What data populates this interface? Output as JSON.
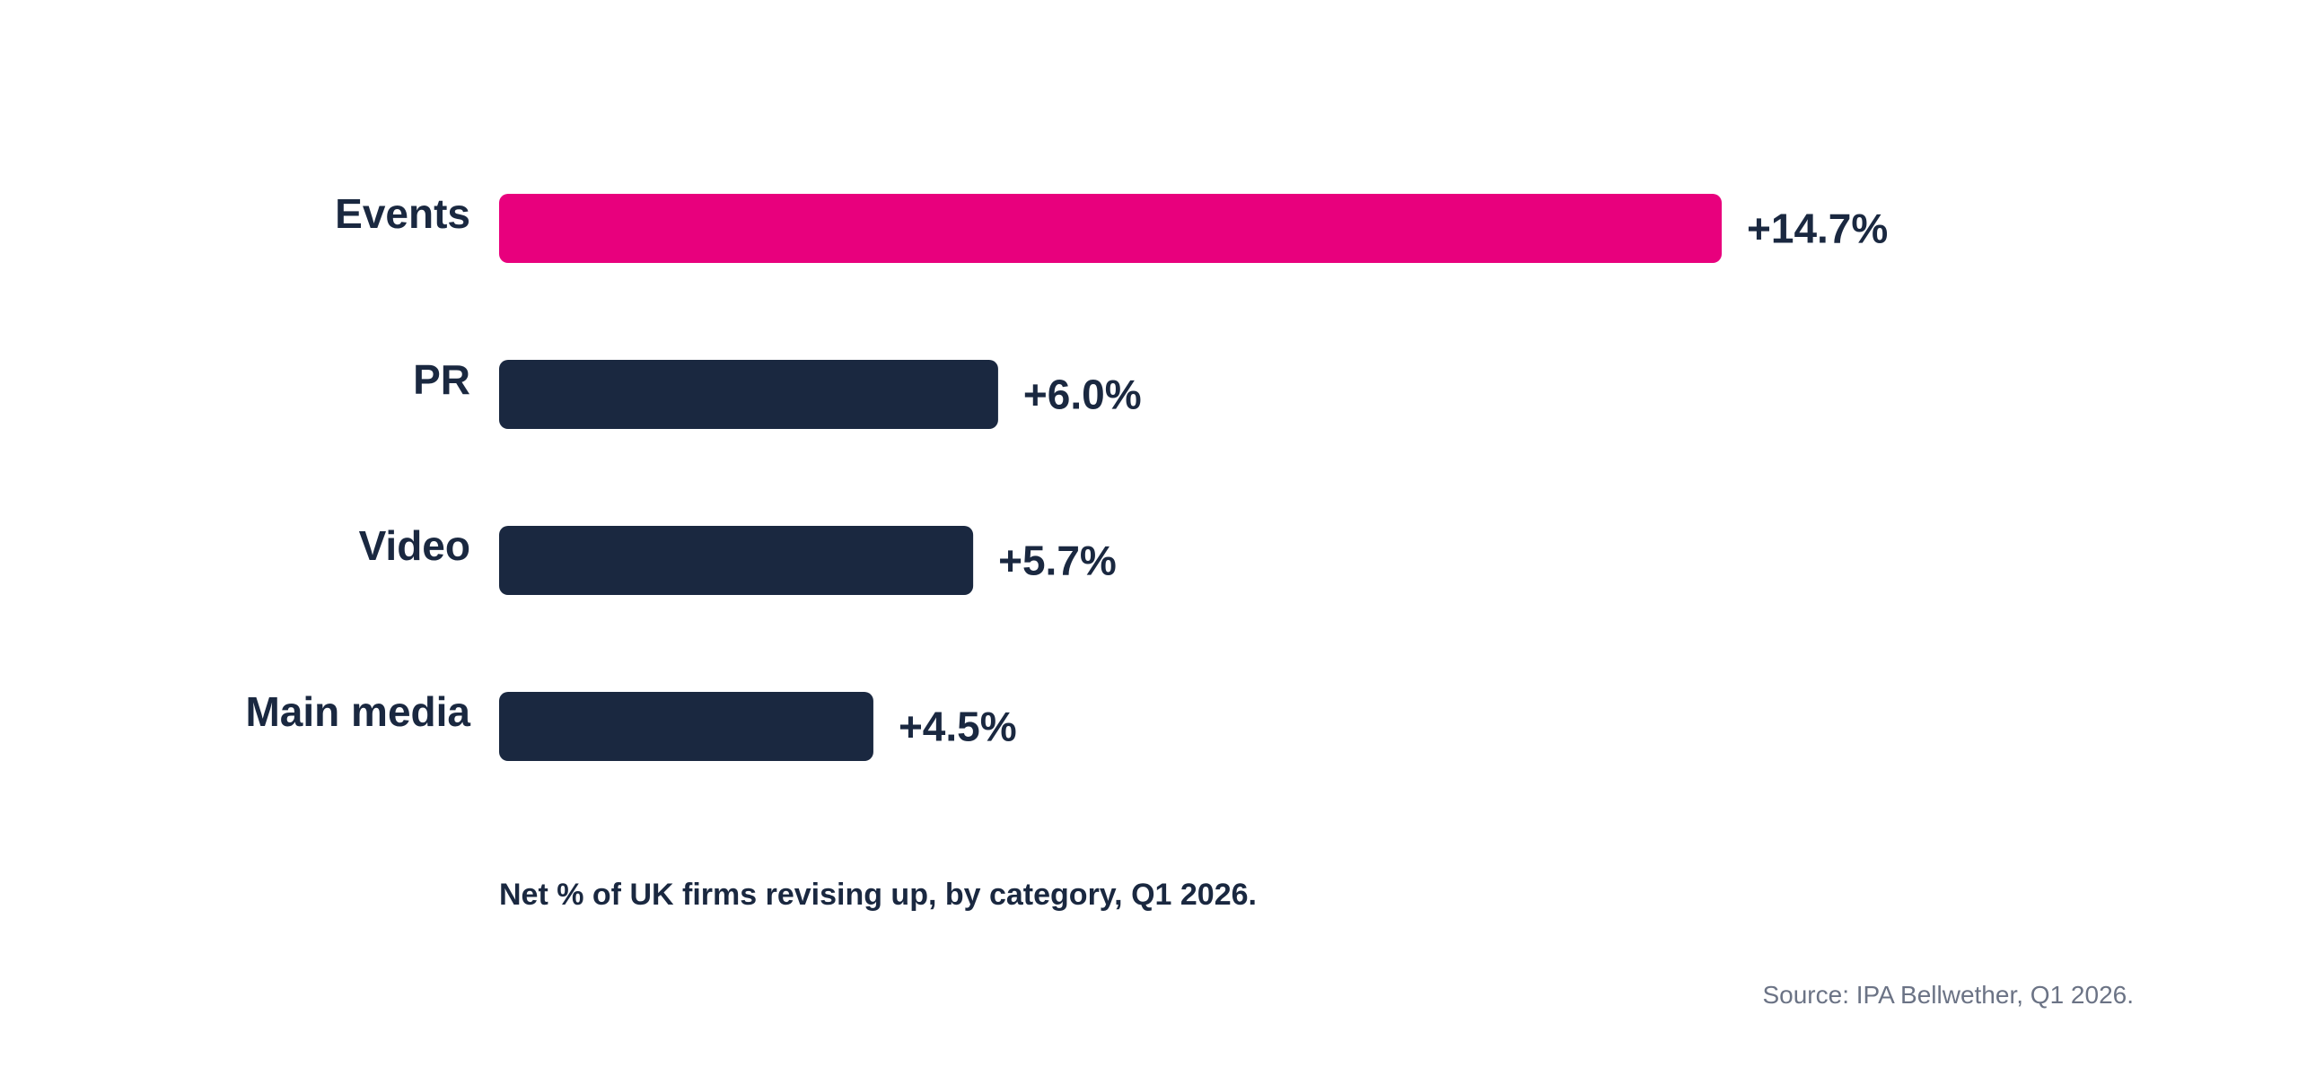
{
  "chart_data": {
    "type": "bar",
    "orientation": "horizontal",
    "categories": [
      "Events",
      "PR",
      "Video",
      "Main media"
    ],
    "values": [
      14.7,
      6.0,
      5.7,
      4.5
    ],
    "value_labels": [
      "+14.7%",
      "+6.0%",
      "+5.7%",
      "+4.5%"
    ],
    "unit": "%",
    "highlight_category": "Events",
    "colors": {
      "highlight": "#e8007d",
      "default": "#1a2840",
      "text": "#1a2840",
      "source_text": "#6b7385"
    },
    "xlim": [
      0,
      14.7
    ],
    "grid": false,
    "legend": "none",
    "caption": "Net % of UK firms revising up, by category, Q1 2026.",
    "source": "Source: IPA Bellwether, Q1 2026."
  }
}
